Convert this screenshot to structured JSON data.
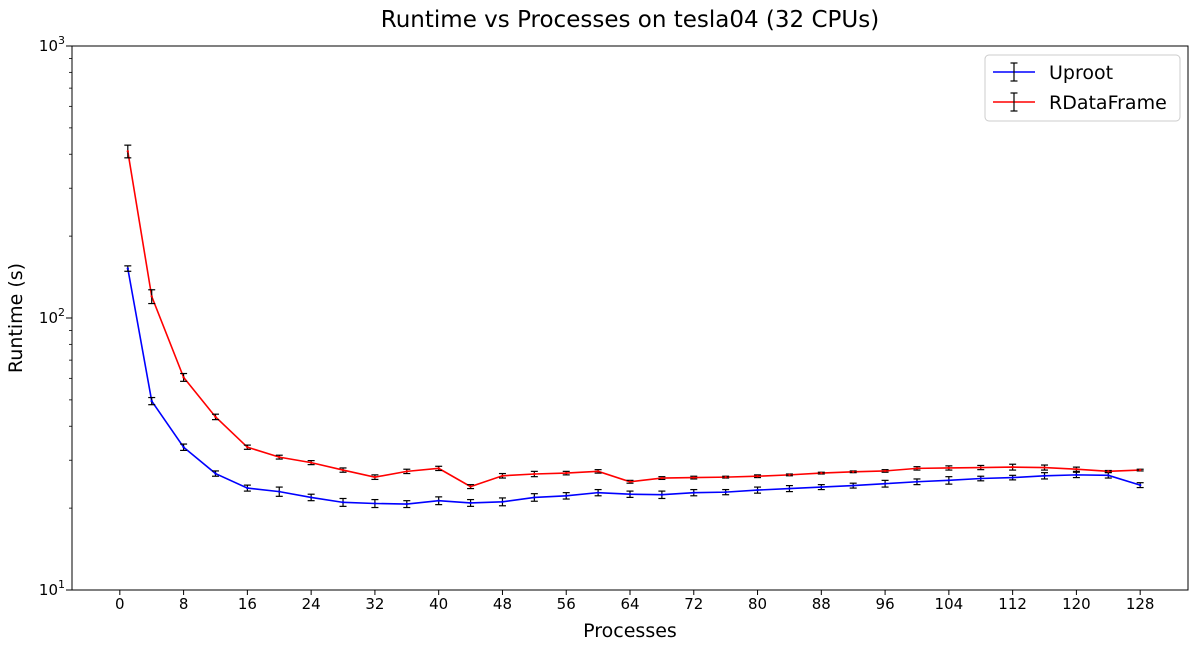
{
  "chart_data": {
    "type": "line",
    "title": "Runtime vs Processes on tesla04 (32 CPUs)",
    "xlabel": "Processes",
    "ylabel": "Runtime (s)",
    "xlim": [
      -6,
      134
    ],
    "ylim": [
      10,
      1000
    ],
    "yscale": "log",
    "xticks": [
      0,
      8,
      16,
      24,
      32,
      40,
      48,
      56,
      64,
      72,
      80,
      88,
      96,
      104,
      112,
      120,
      128
    ],
    "yticks": [
      {
        "value": 10,
        "base": "10",
        "exp": "1"
      },
      {
        "value": 100,
        "base": "10",
        "exp": "2"
      },
      {
        "value": 1000,
        "base": "10",
        "exp": "3"
      }
    ],
    "grid": false,
    "legend_position": "top-right",
    "error_bar_color": "#000000",
    "x": [
      1,
      4,
      8,
      12,
      16,
      20,
      24,
      28,
      32,
      36,
      40,
      44,
      48,
      52,
      56,
      60,
      64,
      68,
      72,
      76,
      80,
      84,
      88,
      92,
      96,
      100,
      104,
      108,
      112,
      116,
      120,
      124,
      128
    ],
    "series": [
      {
        "name": "Uproot",
        "color": "#0000ff",
        "values": [
          152,
          49.5,
          33.5,
          26.8,
          23.7,
          23.0,
          21.9,
          21.0,
          20.8,
          20.7,
          21.3,
          20.9,
          21.1,
          21.9,
          22.2,
          22.8,
          22.5,
          22.4,
          22.8,
          22.9,
          23.3,
          23.6,
          23.9,
          24.2,
          24.6,
          25.0,
          25.3,
          25.7,
          25.9,
          26.3,
          26.5,
          26.4,
          24.3
        ],
        "errors": [
          3.5,
          1.5,
          0.9,
          0.6,
          0.6,
          0.9,
          0.6,
          0.7,
          0.7,
          0.6,
          0.7,
          0.6,
          0.7,
          0.7,
          0.6,
          0.6,
          0.6,
          0.7,
          0.6,
          0.5,
          0.6,
          0.6,
          0.5,
          0.5,
          0.7,
          0.6,
          0.8,
          0.5,
          0.5,
          0.7,
          0.6,
          0.6,
          0.5
        ]
      },
      {
        "name": "RDataFrame",
        "color": "#ff0000",
        "values": [
          410,
          120,
          60.5,
          43.3,
          33.5,
          30.8,
          29.4,
          27.6,
          26.0,
          27.3,
          28.0,
          24.0,
          26.3,
          26.7,
          26.9,
          27.3,
          25.0,
          25.8,
          25.9,
          26.0,
          26.2,
          26.5,
          26.9,
          27.2,
          27.4,
          28.0,
          28.1,
          28.2,
          28.3,
          28.2,
          27.8,
          27.3,
          27.6
        ],
        "errors": [
          22,
          7,
          2,
          1,
          0.6,
          0.5,
          0.5,
          0.5,
          0.5,
          0.5,
          0.5,
          0.4,
          0.5,
          0.6,
          0.4,
          0.4,
          0.3,
          0.3,
          0.3,
          0.2,
          0.3,
          0.2,
          0.2,
          0.2,
          0.3,
          0.4,
          0.5,
          0.5,
          0.7,
          0.6,
          0.5,
          0.2,
          0.2
        ]
      }
    ]
  }
}
